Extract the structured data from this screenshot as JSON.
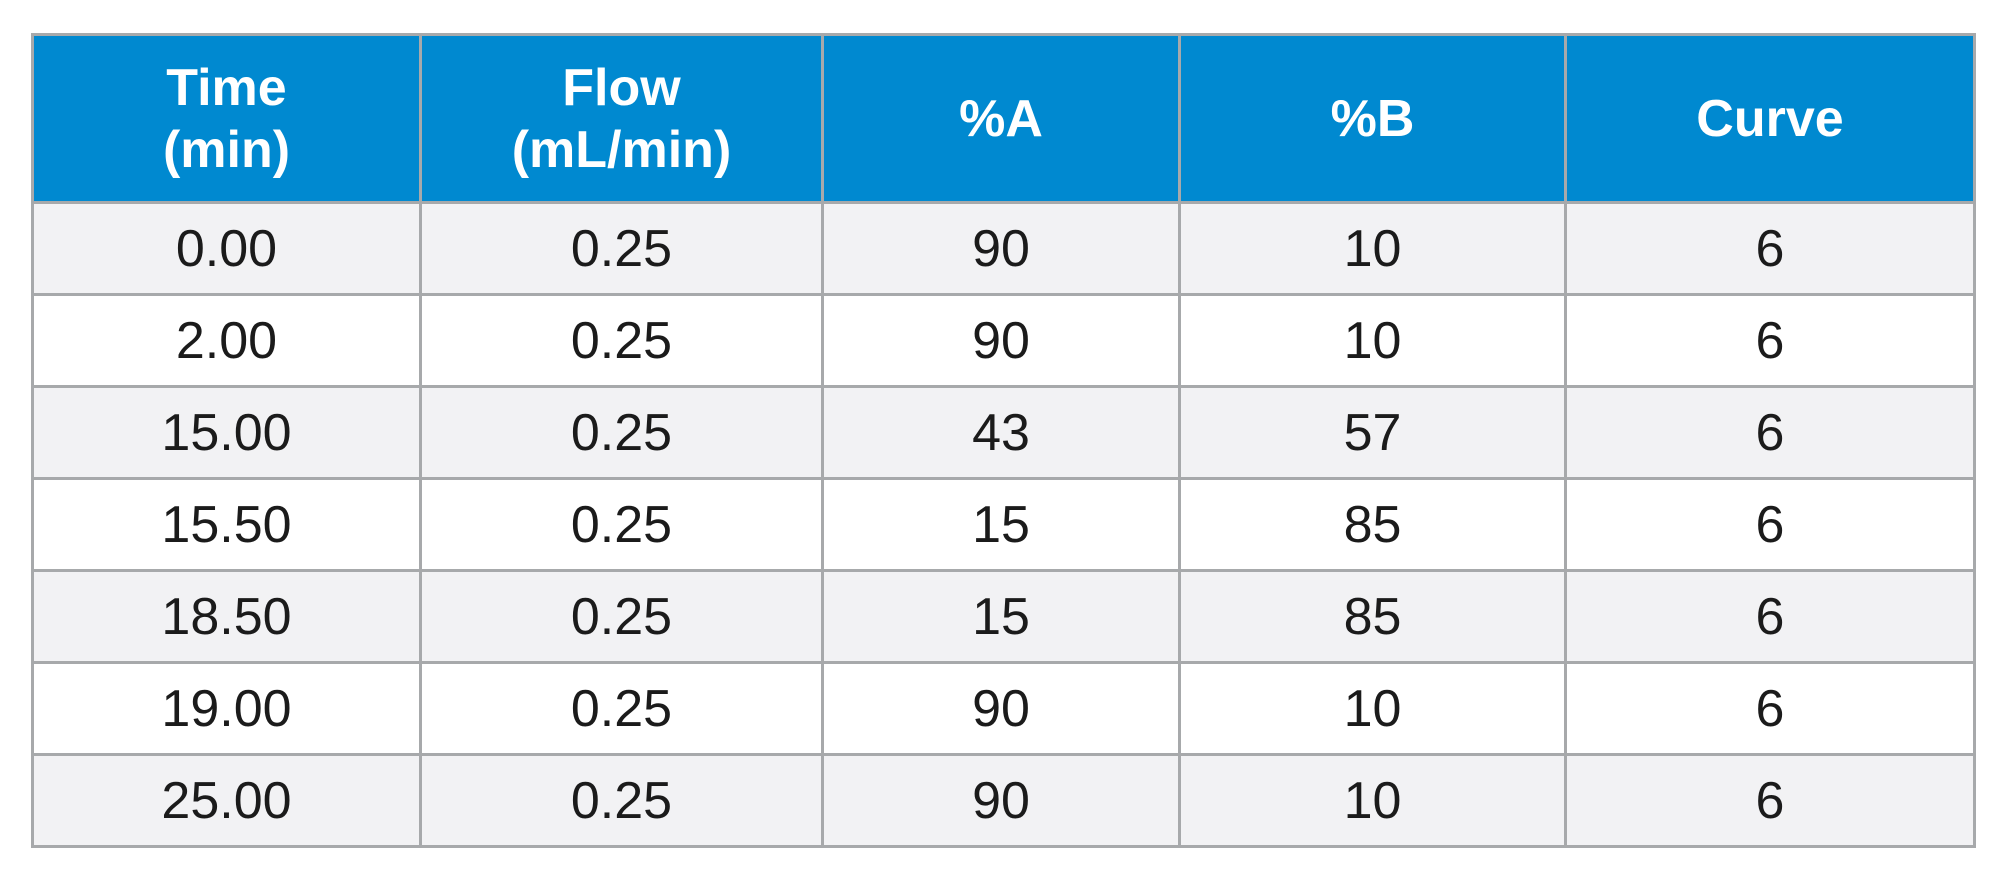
{
  "table": {
    "headers": [
      {
        "lines": [
          "Time",
          "(min)"
        ]
      },
      {
        "lines": [
          "Flow",
          "(mL/min)"
        ]
      },
      {
        "lines": [
          "%A"
        ]
      },
      {
        "lines": [
          "%B"
        ]
      },
      {
        "lines": [
          "Curve"
        ]
      }
    ],
    "rows": [
      [
        "0.00",
        "0.25",
        "90",
        "10",
        "6"
      ],
      [
        "2.00",
        "0.25",
        "90",
        "10",
        "6"
      ],
      [
        "15.00",
        "0.25",
        "43",
        "57",
        "6"
      ],
      [
        "15.50",
        "0.25",
        "15",
        "85",
        "6"
      ],
      [
        "18.50",
        "0.25",
        "15",
        "85",
        "6"
      ],
      [
        "19.00",
        "0.25",
        "90",
        "10",
        "6"
      ],
      [
        "25.00",
        "0.25",
        "90",
        "10",
        "6"
      ]
    ]
  },
  "colors": {
    "header_bg": "#0089d0",
    "header_text": "#ffffff",
    "row_alt_bg": "#f2f2f4",
    "row_bg": "#ffffff",
    "grid_line": "#a7a9ab",
    "cell_text": "#1b1b1b"
  }
}
